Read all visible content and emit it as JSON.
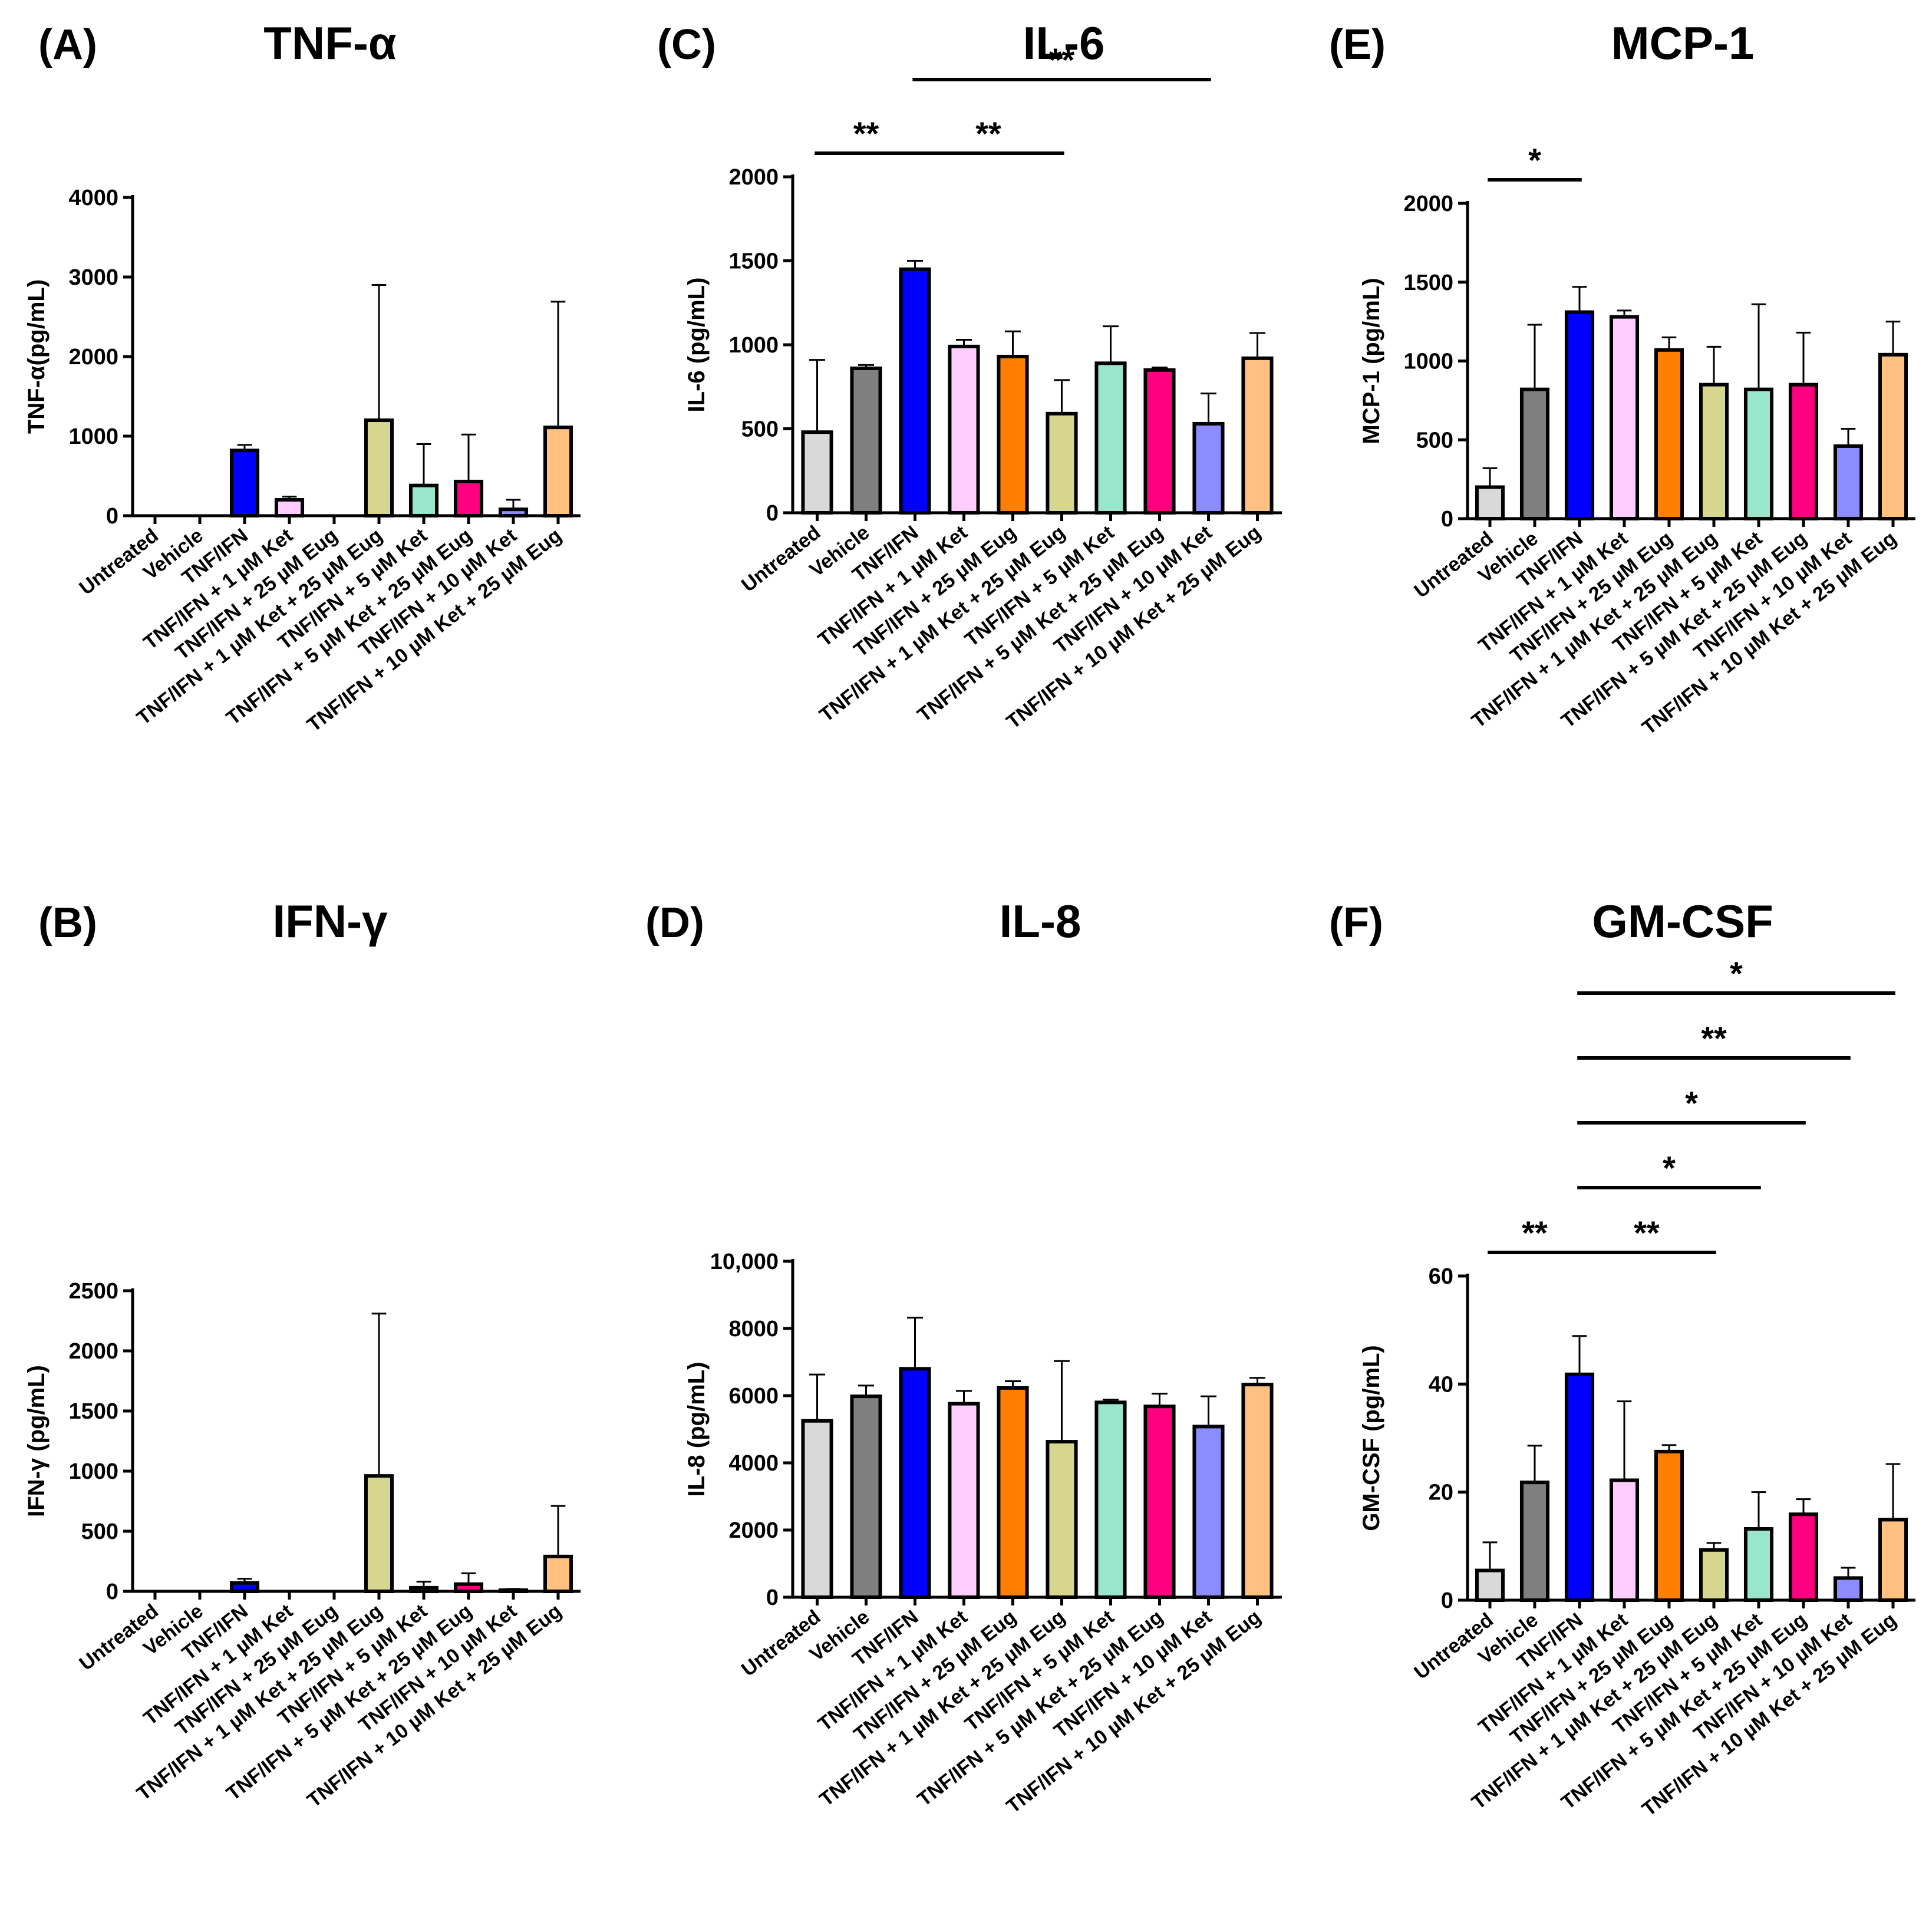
{
  "colors": [
    "#d9d9d9",
    "#7f7f7f",
    "#0000ff",
    "#ffccff",
    "#ff7f00",
    "#d6d68f",
    "#99e6cc",
    "#ff0080",
    "#8c8cff",
    "#ffc080"
  ],
  "categories": [
    "Untreated",
    "Vehicle",
    "TNF/IFN",
    "TNF/IFN + 1 µM Ket",
    "TNF/IFN + 25 µM Eug",
    "TNF/IFN + 1 µM Ket + 25 µM Eug",
    "TNF/IFN + 5 µM Ket",
    "TNF/IFN + 5 µM Ket + 25 µM Eug",
    "TNF/IFN + 10 µM Ket",
    "TNF/IFN + 10 µM Ket + 25 µM Eug"
  ],
  "chart_data": [
    {
      "type": "bar",
      "panel": "(A)",
      "title": "TNF-α",
      "ylabel": "TNF-α(pg/mL)",
      "ylim": [
        0,
        4000
      ],
      "yticks": [
        "0",
        "1000",
        "2000",
        "3000",
        "4000"
      ],
      "ytick_values": [
        0,
        1000,
        2000,
        3000,
        4000
      ],
      "values": [
        0,
        0,
        820,
        200,
        0,
        1200,
        380,
        430,
        80,
        1110
      ],
      "errors": [
        0,
        0,
        70,
        40,
        0,
        1700,
        520,
        590,
        120,
        1580
      ],
      "significance": []
    },
    {
      "type": "bar",
      "panel": "(B)",
      "title": "IFN-γ",
      "ylabel": "IFN-γ (pg/mL)",
      "ylim": [
        0,
        2500
      ],
      "yticks": [
        "0",
        "500",
        "1000",
        "1500",
        "2000",
        "2500"
      ],
      "ytick_values": [
        0,
        500,
        1000,
        1500,
        2000,
        2500
      ],
      "values": [
        0,
        0,
        70,
        0,
        0,
        960,
        30,
        60,
        10,
        290
      ],
      "errors": [
        0,
        0,
        35,
        0,
        0,
        1350,
        50,
        90,
        10,
        420
      ],
      "significance": []
    },
    {
      "type": "bar",
      "panel": "(C)",
      "title": "IL-6",
      "ylabel": "IL-6 (pg/mL)",
      "ylim": [
        0,
        2000
      ],
      "yticks": [
        "0",
        "500",
        "1000",
        "1500",
        "2000"
      ],
      "ytick_values": [
        0,
        500,
        1000,
        1500,
        2000
      ],
      "values": [
        480,
        860,
        1450,
        990,
        930,
        590,
        890,
        850,
        530,
        920
      ],
      "errors": [
        430,
        20,
        50,
        40,
        150,
        200,
        220,
        15,
        180,
        150
      ],
      "significance": [
        {
          "from": 0,
          "to": 2,
          "label": "**",
          "level": 0
        },
        {
          "from": 2,
          "to": 5,
          "label": "**",
          "level": 0
        },
        {
          "from": 2,
          "to": 8,
          "label": "**",
          "level": 1
        }
      ]
    },
    {
      "type": "bar",
      "panel": "(D)",
      "title": "IL-8",
      "ylabel": "IL-8 (pg/mL)",
      "ylim": [
        0,
        10000
      ],
      "yticks": [
        "0",
        "2000",
        "4000",
        "6000",
        "8000",
        "10,000"
      ],
      "ytick_values": [
        0,
        2000,
        4000,
        6000,
        8000,
        10000
      ],
      "values": [
        5250,
        5980,
        6800,
        5760,
        6230,
        4630,
        5800,
        5680,
        5080,
        6330
      ],
      "errors": [
        1380,
        320,
        1520,
        380,
        200,
        2400,
        80,
        380,
        900,
        200
      ],
      "significance": []
    },
    {
      "type": "bar",
      "panel": "(E)",
      "title": "MCP-1",
      "ylabel": "MCP-1 (pg/mL)",
      "ylim": [
        0,
        2000
      ],
      "yticks": [
        "0",
        "500",
        "1000",
        "1500",
        "2000"
      ],
      "ytick_values": [
        0,
        500,
        1000,
        1500,
        2000
      ],
      "values": [
        200,
        820,
        1310,
        1280,
        1070,
        850,
        820,
        850,
        460,
        1040
      ],
      "errors": [
        120,
        410,
        160,
        40,
        80,
        240,
        540,
        330,
        110,
        210
      ],
      "significance": [
        {
          "from": 0,
          "to": 2,
          "label": "*",
          "level": 0
        }
      ]
    },
    {
      "type": "bar",
      "panel": "(F)",
      "title": "GM-CSF",
      "ylabel": "GM-CSF (pg/mL)",
      "ylim": [
        0,
        60
      ],
      "yticks": [
        "0",
        "20",
        "40",
        "60"
      ],
      "ytick_values": [
        0,
        20,
        40,
        60
      ],
      "values": [
        5.5,
        21.8,
        41.8,
        22.2,
        27.5,
        9.3,
        13.2,
        15.9,
        4.1,
        14.9
      ],
      "errors": [
        5.2,
        6.8,
        7.1,
        14.6,
        1.2,
        1.3,
        6.8,
        2.8,
        1.9,
        10.3
      ],
      "significance": [
        {
          "from": 0,
          "to": 2,
          "label": "**",
          "level": 0
        },
        {
          "from": 2,
          "to": 5,
          "label": "**",
          "level": 0
        },
        {
          "from": 2,
          "to": 6,
          "label": "*",
          "level": 1
        },
        {
          "from": 2,
          "to": 7,
          "label": "*",
          "level": 2
        },
        {
          "from": 2,
          "to": 8,
          "label": "**",
          "level": 3
        },
        {
          "from": 2,
          "to": 9,
          "label": "*",
          "level": 4
        }
      ]
    }
  ]
}
